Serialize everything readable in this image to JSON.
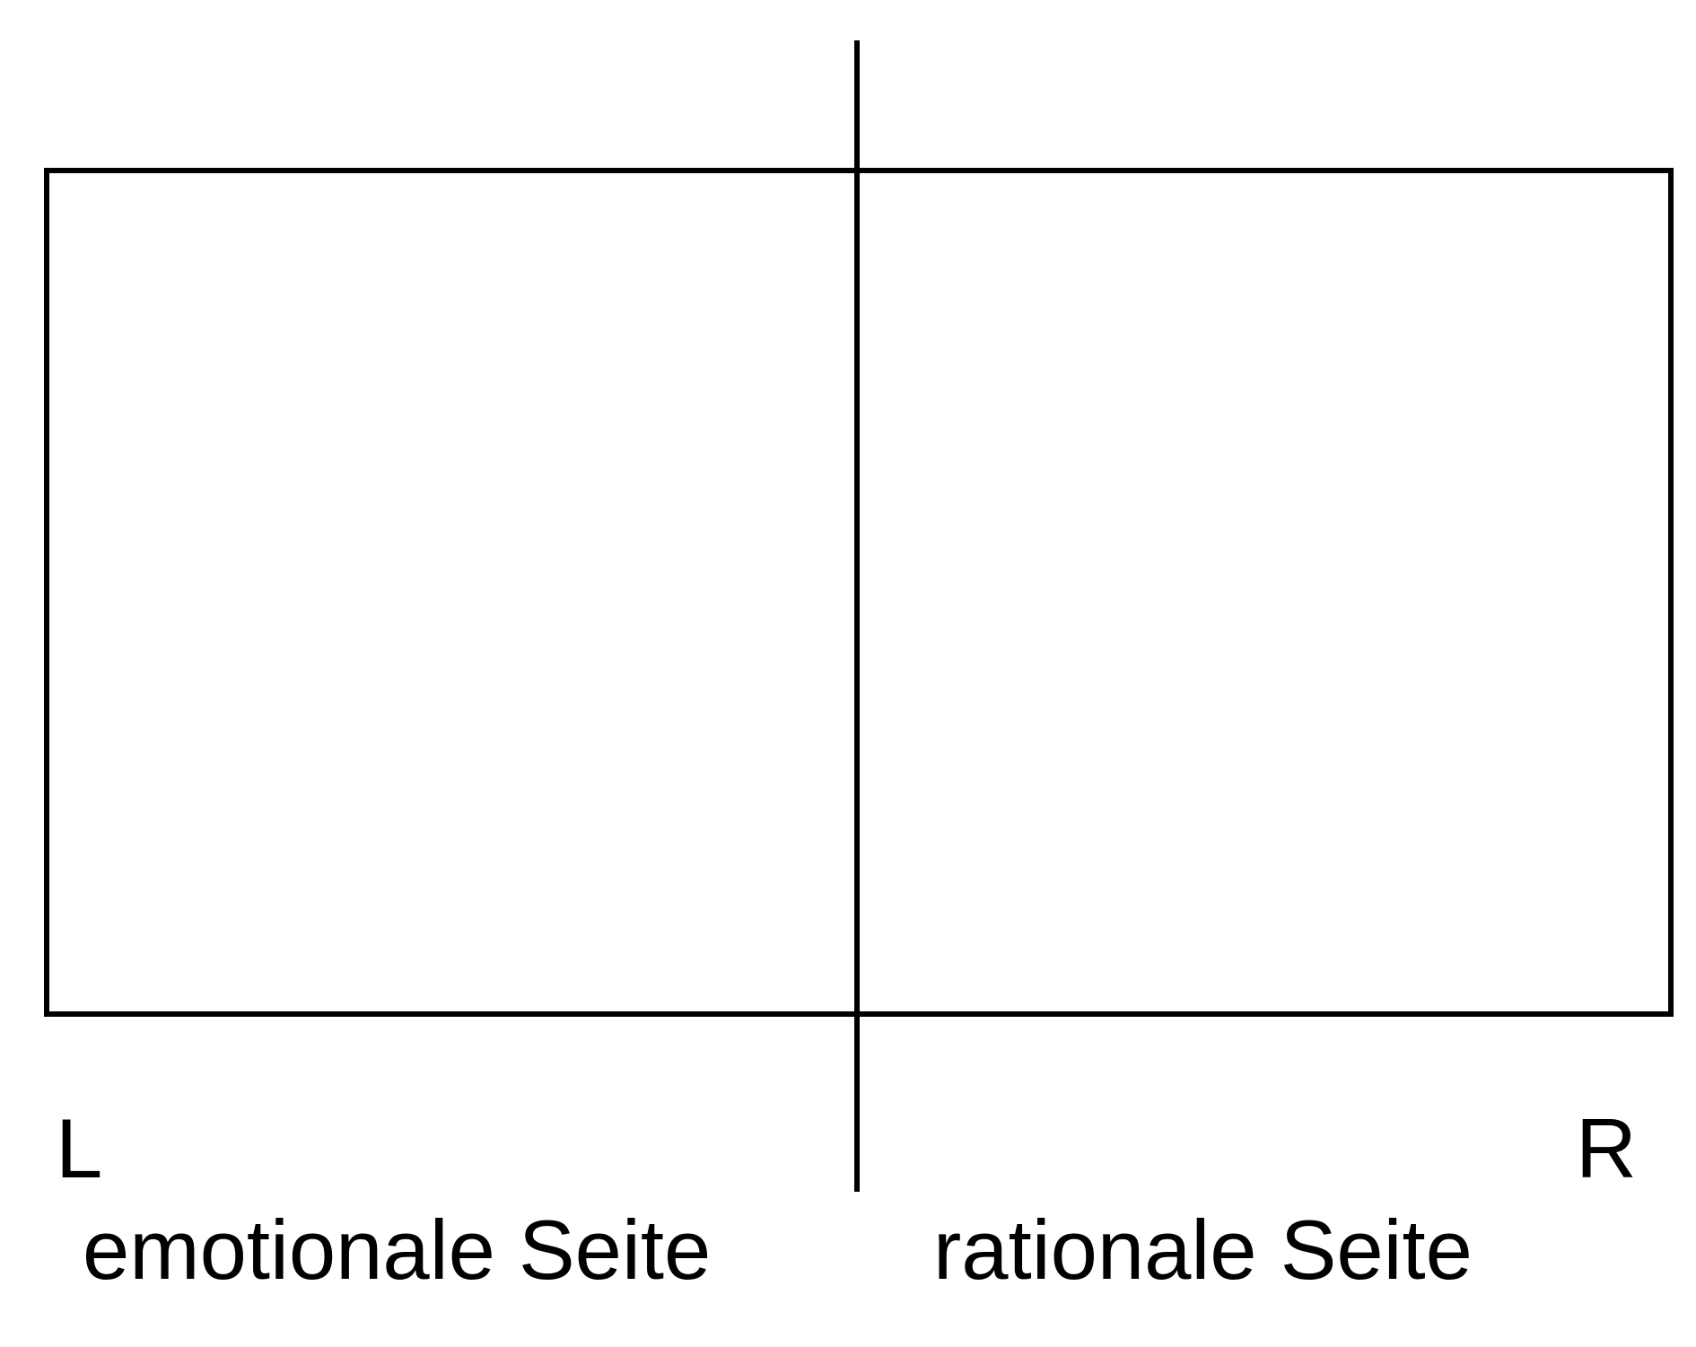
{
  "diagram": {
    "left": {
      "letter": "L",
      "caption": "emotionale Seite"
    },
    "right": {
      "letter": "R",
      "caption": "rationale Seite"
    },
    "colors": {
      "stroke": "#000000",
      "background": "#ffffff"
    }
  }
}
